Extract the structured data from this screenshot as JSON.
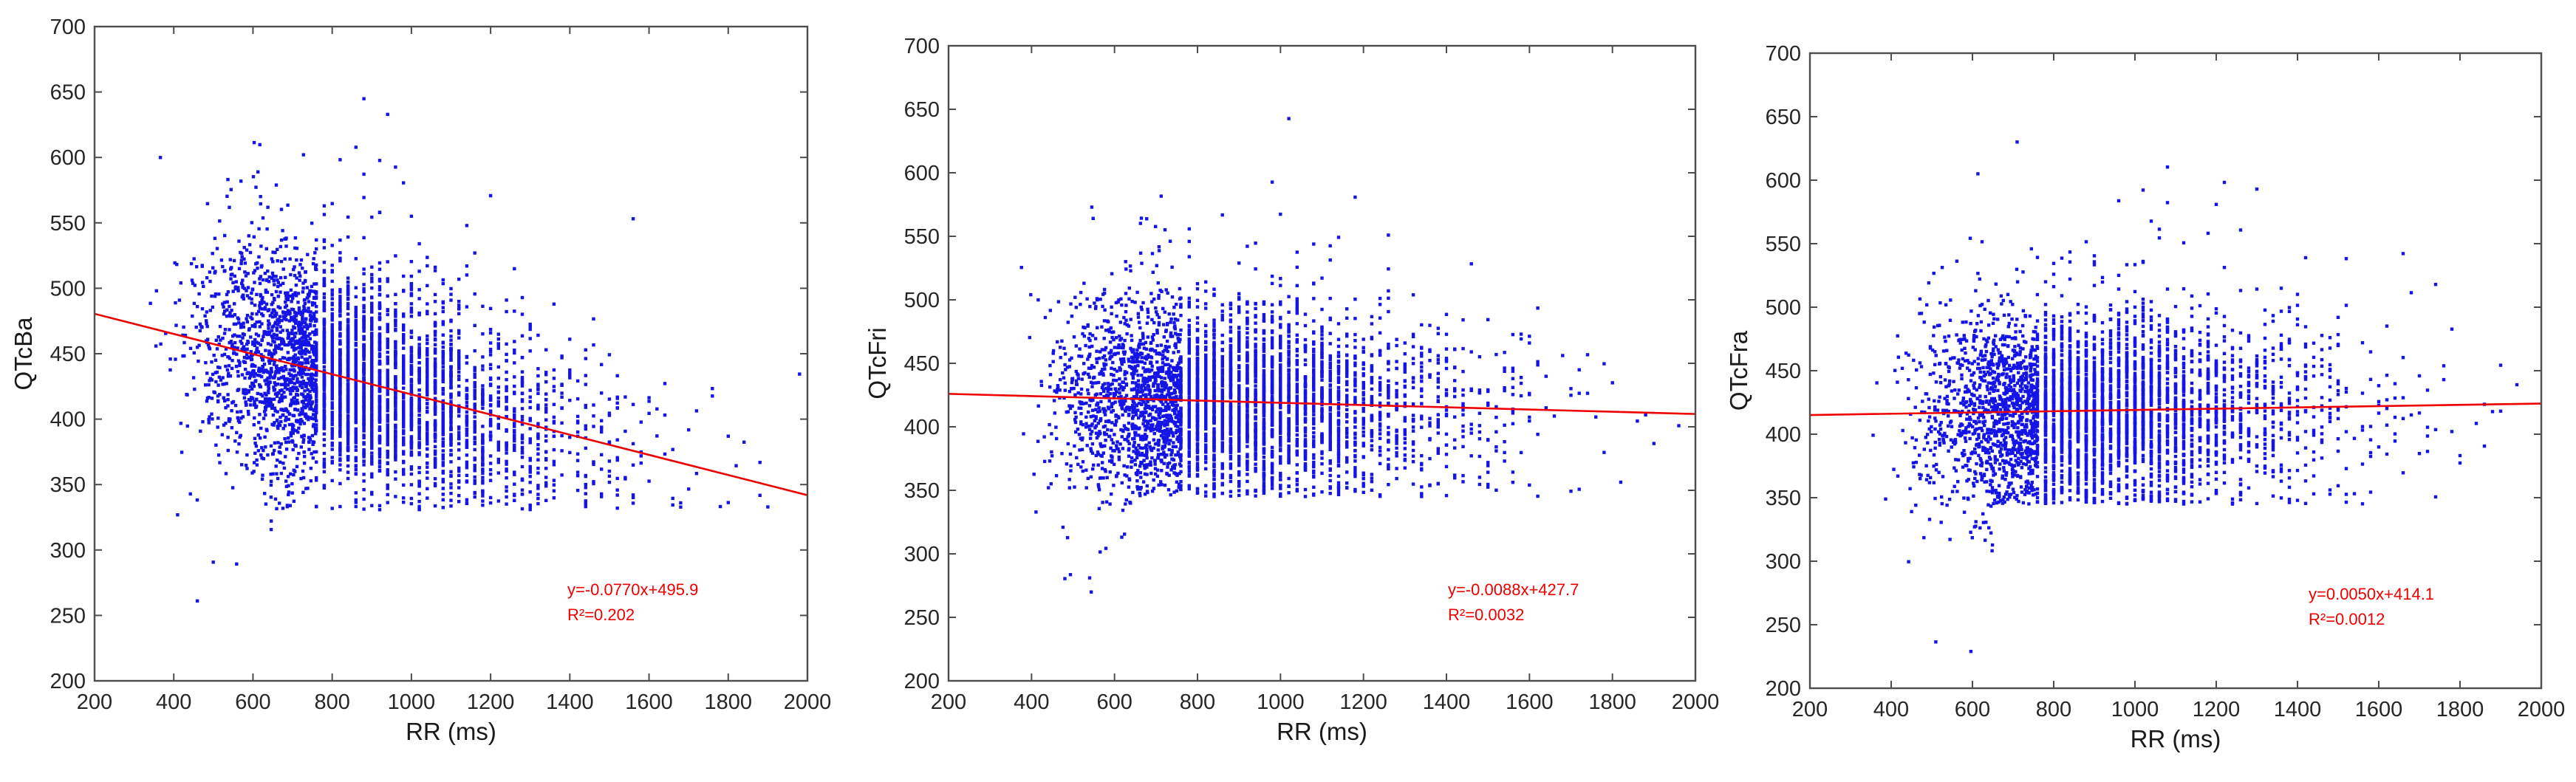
{
  "colors": {
    "points": "#1414e6",
    "regression": "#ee0000",
    "axes": "#4d4d4d"
  },
  "chart_data": [
    {
      "type": "scatter",
      "xlabel": "RR (ms)",
      "ylabel": "QTcBa",
      "xlim": [
        200,
        2000
      ],
      "ylim": [
        200,
        700
      ],
      "xticks": [
        200,
        400,
        600,
        800,
        1000,
        1200,
        1400,
        1600,
        1800,
        2000
      ],
      "yticks": [
        200,
        250,
        300,
        350,
        400,
        450,
        500,
        550,
        600,
        650,
        700
      ],
      "regression": {
        "slope": -0.077,
        "intercept": 495.9,
        "equation": "y=-0.0770x+495.9",
        "r2_label": "R²=0.202"
      },
      "point_cloud": {
        "rr_center": 850,
        "rr_spread": 230,
        "rr_min": 340,
        "rr_max": 1990,
        "residual_sd": 38,
        "lower_bound": 330
      }
    },
    {
      "type": "scatter",
      "xlabel": "RR (ms)",
      "ylabel": "QTcFri",
      "xlim": [
        200,
        2000
      ],
      "ylim": [
        200,
        700
      ],
      "xticks": [
        200,
        400,
        600,
        800,
        1000,
        1200,
        1400,
        1600,
        1800,
        2000
      ],
      "yticks": [
        200,
        250,
        300,
        350,
        400,
        450,
        500,
        550,
        600,
        650,
        700
      ],
      "regression": {
        "slope": -0.0088,
        "intercept": 427.7,
        "equation": "y=-0.0088x+427.7",
        "r2_label": "R²=0.0032"
      },
      "point_cloud": {
        "rr_center": 860,
        "rr_spread": 230,
        "rr_min": 330,
        "rr_max": 1995,
        "residual_sd": 36,
        "lower_bound": 345
      }
    },
    {
      "type": "scatter",
      "xlabel": "RR (ms)",
      "ylabel": "QTcFra",
      "xlim": [
        200,
        2000
      ],
      "ylim": [
        200,
        700
      ],
      "xticks": [
        200,
        400,
        600,
        800,
        1000,
        1200,
        1400,
        1600,
        1800,
        2000
      ],
      "yticks": [
        200,
        250,
        300,
        350,
        400,
        450,
        500,
        550,
        600,
        650,
        700
      ],
      "regression": {
        "slope": 0.005,
        "intercept": 414.1,
        "equation": "y=0.0050x+414.1",
        "r2_label": "R²=0.0012"
      },
      "point_cloud": {
        "rr_center": 880,
        "rr_spread": 230,
        "rr_min": 340,
        "rr_max": 1990,
        "residual_sd": 37,
        "lower_bound": 345
      }
    }
  ]
}
